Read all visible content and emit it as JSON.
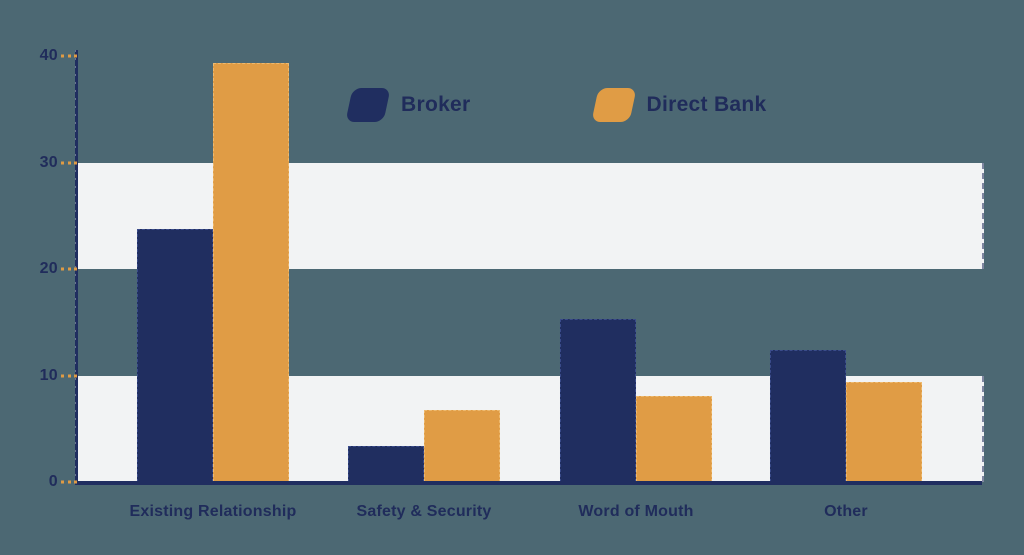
{
  "colors": {
    "background": "#4C6873",
    "band": "#F2F3F4",
    "navy": "#202E60",
    "orange": "#DF9B44",
    "text": "#202C5B"
  },
  "legend": {
    "items": [
      {
        "label": "Broker",
        "color": "#202E60"
      },
      {
        "label": "Direct Bank",
        "color": "#E09C45"
      }
    ]
  },
  "chart_data": {
    "type": "bar",
    "title": "",
    "xlabel": "",
    "ylabel": "",
    "categories": [
      "Existing Relationship",
      "Safety & Security",
      "Word of Mouth",
      "Other"
    ],
    "series": [
      {
        "name": "Broker",
        "color": "#202E60",
        "values": [
          23.8,
          3.4,
          15.3,
          12.4
        ]
      },
      {
        "name": "Direct Bank",
        "color": "#E09C45",
        "values": [
          39.3,
          6.8,
          8.1,
          9.4
        ]
      }
    ],
    "ylim": [
      0,
      40
    ],
    "yticks": [
      0,
      10,
      20,
      30,
      40
    ],
    "grid": "alternating horizontal light bands covering value ranges 0-10 and 20-30",
    "legend_position": "top-center"
  }
}
